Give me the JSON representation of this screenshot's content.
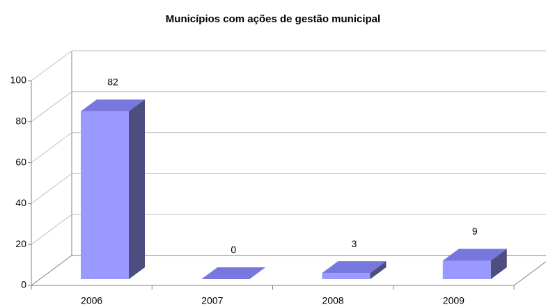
{
  "chart_data": {
    "type": "bar3d",
    "title": "Municípios com ações de gestão municipal",
    "categories": [
      "2006",
      "2007",
      "2008",
      "2009"
    ],
    "values": [
      82,
      0,
      3,
      9
    ],
    "color": "#9999ff",
    "top_color": "#7777dd",
    "side_color": "#4d4d80",
    "ylim": [
      0,
      100
    ],
    "yticks": [
      0,
      20,
      40,
      60,
      80,
      100
    ],
    "grid": true
  }
}
